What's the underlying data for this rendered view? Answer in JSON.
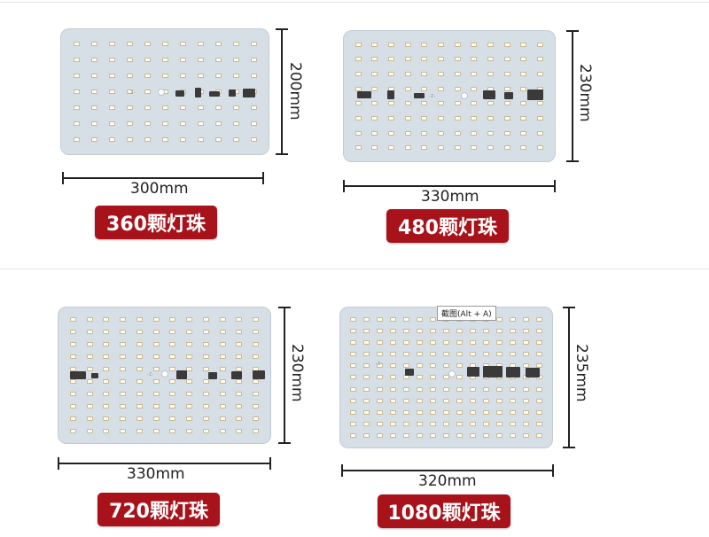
{
  "products": [
    {
      "count_label": "360颗灯珠",
      "width_label": "300mm",
      "height_label": "200mm",
      "led_grid": {
        "cols": 11,
        "rows": 7
      }
    },
    {
      "count_label": "480颗灯珠",
      "width_label": "330mm",
      "height_label": "230mm",
      "led_grid": {
        "cols": 12,
        "rows": 8
      }
    },
    {
      "count_label": "720颗灯珠",
      "width_label": "330mm",
      "height_label": "230mm",
      "led_grid": {
        "cols": 12,
        "rows": 10
      }
    },
    {
      "count_label": "1080颗灯珠",
      "width_label": "320mm",
      "height_label": "235mm",
      "led_grid": {
        "cols": 15,
        "rows": 11
      }
    }
  ],
  "screenshot_tooltip": "截图(Alt + A)",
  "colors": {
    "badge": "#a8131b",
    "board": "#d6dee6",
    "dimension_line": "#222222"
  }
}
